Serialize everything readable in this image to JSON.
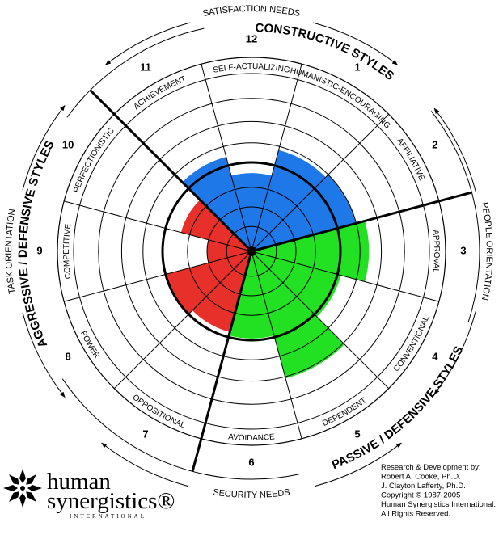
{
  "chart_data": {
    "type": "circumplex",
    "categories": [
      "HUMANISTIC-ENCOURAGING",
      "AFFILIATIVE",
      "APPROVAL",
      "CONVENTIONAL",
      "DEPENDENT",
      "AVOIDANCE",
      "OPPOSITIONAL",
      "POWER",
      "COMPETITIVE",
      "PERFECTIONISTIC",
      "ACHIEVEMENT",
      "SELF-ACTUALIZING"
    ],
    "sector_numbers": [
      1,
      2,
      3,
      4,
      5,
      6,
      7,
      8,
      9,
      10,
      11,
      12
    ],
    "values": [
      59,
      61,
      66,
      52,
      74,
      49,
      47,
      50,
      25,
      41,
      55,
      44
    ],
    "colors": [
      "#1f78e8",
      "#1f78e8",
      "#22e022",
      "#22e022",
      "#22e022",
      "#22e022",
      "#e8302a",
      "#e8302a",
      "#e8302a",
      "#e8302a",
      "#1f78e8",
      "#1f78e8"
    ],
    "rlim": [
      0,
      100
    ],
    "rings": [
      14,
      25,
      36,
      50,
      61,
      73,
      86
    ],
    "emphasis_ring": 50,
    "group_labels": [
      "CONSTRUCTIVE STYLES",
      "PASSIVE / DEFENSIVE STYLES",
      "AGGRESSIVE / DEFENSIVE STYLES"
    ],
    "orientation_labels": {
      "top": "SATISFACTION NEEDS",
      "right": "PEOPLE ORIENTATION",
      "bottom": "SECURITY NEEDS",
      "left": "TASK ORIENTATION"
    }
  },
  "logo": {
    "line1": "human",
    "line2": "synergistics®",
    "line3": "INTERNATIONAL"
  },
  "credits": [
    "Research & Development by:",
    "Robert A. Cooke, Ph.D.",
    "J. Clayton Lafferty, Ph.D.",
    "Copyright © 1987-2005",
    "Human Synergistics International.",
    "All Rights Reserved."
  ]
}
